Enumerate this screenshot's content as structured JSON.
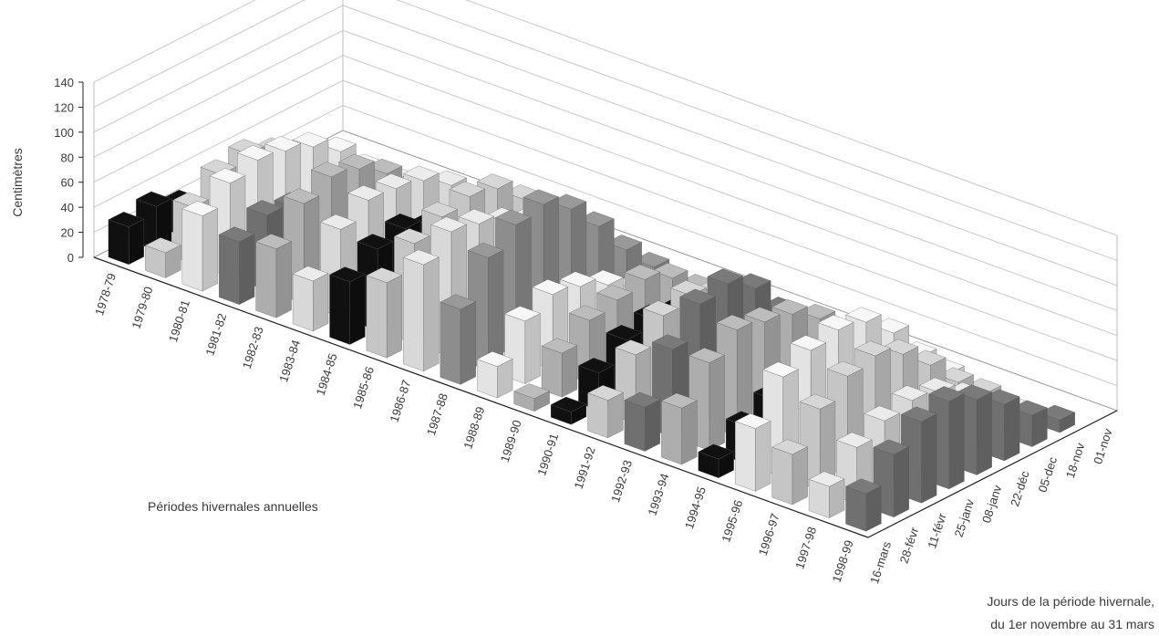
{
  "chart_data": {
    "type": "3d-bar",
    "title": "",
    "ylabel": "Centimètres",
    "xlabel": "Périodes hivernales annuelles",
    "zlabel_line1": "Jours de la période hivernale,",
    "zlabel_line2": "du 1er novembre au 31 mars",
    "ylim": [
      0,
      140
    ],
    "y_ticks": [
      "0",
      "20",
      "40",
      "60",
      "80",
      "100",
      "120",
      "140"
    ],
    "periods": [
      "1978-79",
      "1979-80",
      "1980-81",
      "1981-82",
      "1982-83",
      "1983-84",
      "1984-85",
      "1985-86",
      "1986-87",
      "1987-88",
      "1988-89",
      "1989-90",
      "1990-91",
      "1991-92",
      "1992-93",
      "1993-94",
      "1994-95",
      "1995-96",
      "1996-97",
      "1997-98",
      "1998-99"
    ],
    "days": [
      "01-nov",
      "18-nov",
      "05-dec",
      "22-déc",
      "08-janv",
      "25-janv",
      "11-févr",
      "28-févr",
      "16-mars"
    ],
    "shades": [
      "#111111",
      "#d6d6d6",
      "#f7f7f7",
      "#7a7a7a",
      "#bcbcbc",
      "#ebebeb",
      "#999999"
    ],
    "series_shade": [
      0,
      1,
      2,
      3,
      4,
      5,
      0,
      1,
      5,
      6,
      2,
      4,
      0,
      1,
      3,
      4,
      0,
      2,
      1,
      5,
      3
    ],
    "series": [
      {
        "name": "1978-79",
        "values": [
          0,
          0,
          0,
          0,
          0,
          10,
          25,
          35,
          30
        ]
      },
      {
        "name": "1979-80",
        "values": [
          0,
          5,
          20,
          40,
          55,
          65,
          60,
          45,
          20
        ]
      },
      {
        "name": "1980-81",
        "values": [
          0,
          10,
          30,
          55,
          70,
          78,
          82,
          75,
          60
        ]
      },
      {
        "name": "1981-82",
        "values": [
          0,
          0,
          5,
          15,
          30,
          45,
          55,
          60,
          50
        ]
      },
      {
        "name": "1982-83",
        "values": [
          0,
          5,
          20,
          45,
          70,
          85,
          90,
          80,
          55
        ]
      },
      {
        "name": "1983-84",
        "values": [
          0,
          15,
          35,
          60,
          75,
          80,
          82,
          70,
          40
        ]
      },
      {
        "name": "1984-85",
        "values": [
          0,
          5,
          20,
          40,
          55,
          60,
          70,
          65,
          50
        ]
      },
      {
        "name": "1985-86",
        "values": [
          0,
          20,
          45,
          70,
          90,
          95,
          90,
          80,
          60
        ]
      },
      {
        "name": "1986-87",
        "values": [
          0,
          10,
          30,
          55,
          75,
          85,
          95,
          100,
          85
        ]
      },
      {
        "name": "1987-88",
        "values": [
          0,
          15,
          40,
          70,
          95,
          110,
          105,
          90,
          60
        ]
      },
      {
        "name": "1988-89",
        "values": [
          0,
          5,
          15,
          30,
          45,
          55,
          60,
          50,
          25
        ]
      },
      {
        "name": "1989-90",
        "values": [
          0,
          10,
          30,
          50,
          60,
          55,
          50,
          35,
          10
        ]
      },
      {
        "name": "1990-91",
        "values": [
          0,
          5,
          20,
          35,
          45,
          50,
          45,
          30,
          10
        ]
      },
      {
        "name": "1991-92",
        "values": [
          0,
          10,
          25,
          50,
          70,
          80,
          75,
          55,
          30
        ]
      },
      {
        "name": "1992-93",
        "values": [
          0,
          5,
          25,
          55,
          85,
          100,
          95,
          70,
          35
        ]
      },
      {
        "name": "1993-94",
        "values": [
          0,
          10,
          30,
          60,
          75,
          80,
          85,
          70,
          45
        ]
      },
      {
        "name": "1994-95",
        "values": [
          0,
          5,
          15,
          30,
          40,
          45,
          40,
          30,
          15
        ]
      },
      {
        "name": "1995-96",
        "values": [
          0,
          15,
          40,
          70,
          90,
          95,
          90,
          80,
          50
        ]
      },
      {
        "name": "1996-97",
        "values": [
          0,
          10,
          30,
          55,
          75,
          85,
          80,
          65,
          40
        ]
      },
      {
        "name": "1997-98",
        "values": [
          0,
          5,
          20,
          40,
          55,
          60,
          55,
          45,
          25
        ]
      },
      {
        "name": "1998-99",
        "values": [
          0,
          10,
          25,
          45,
          60,
          70,
          65,
          50,
          30
        ]
      }
    ]
  }
}
